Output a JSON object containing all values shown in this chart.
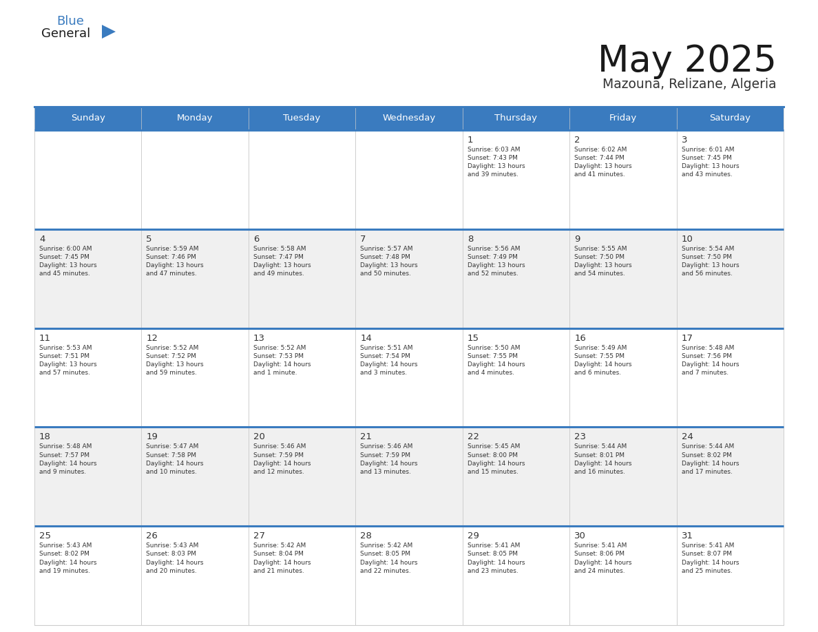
{
  "title": "May 2025",
  "subtitle": "Mazouna, Relizane, Algeria",
  "header_color": "#3a7bbf",
  "header_text_color": "#ffffff",
  "cell_bg_white": "#ffffff",
  "cell_bg_gray": "#f0f0f0",
  "border_color": "#cccccc",
  "day_number_color": "#333333",
  "info_text_color": "#333333",
  "days_of_week": [
    "Sunday",
    "Monday",
    "Tuesday",
    "Wednesday",
    "Thursday",
    "Friday",
    "Saturday"
  ],
  "logo_general_color": "#1a1a1a",
  "logo_blue_color": "#3a7bbf",
  "logo_triangle_color": "#3a7bbf",
  "title_color": "#1a1a1a",
  "subtitle_color": "#333333",
  "weeks": [
    [
      {
        "day": "",
        "info": ""
      },
      {
        "day": "",
        "info": ""
      },
      {
        "day": "",
        "info": ""
      },
      {
        "day": "",
        "info": ""
      },
      {
        "day": "1",
        "info": "Sunrise: 6:03 AM\nSunset: 7:43 PM\nDaylight: 13 hours\nand 39 minutes."
      },
      {
        "day": "2",
        "info": "Sunrise: 6:02 AM\nSunset: 7:44 PM\nDaylight: 13 hours\nand 41 minutes."
      },
      {
        "day": "3",
        "info": "Sunrise: 6:01 AM\nSunset: 7:45 PM\nDaylight: 13 hours\nand 43 minutes."
      }
    ],
    [
      {
        "day": "4",
        "info": "Sunrise: 6:00 AM\nSunset: 7:45 PM\nDaylight: 13 hours\nand 45 minutes."
      },
      {
        "day": "5",
        "info": "Sunrise: 5:59 AM\nSunset: 7:46 PM\nDaylight: 13 hours\nand 47 minutes."
      },
      {
        "day": "6",
        "info": "Sunrise: 5:58 AM\nSunset: 7:47 PM\nDaylight: 13 hours\nand 49 minutes."
      },
      {
        "day": "7",
        "info": "Sunrise: 5:57 AM\nSunset: 7:48 PM\nDaylight: 13 hours\nand 50 minutes."
      },
      {
        "day": "8",
        "info": "Sunrise: 5:56 AM\nSunset: 7:49 PM\nDaylight: 13 hours\nand 52 minutes."
      },
      {
        "day": "9",
        "info": "Sunrise: 5:55 AM\nSunset: 7:50 PM\nDaylight: 13 hours\nand 54 minutes."
      },
      {
        "day": "10",
        "info": "Sunrise: 5:54 AM\nSunset: 7:50 PM\nDaylight: 13 hours\nand 56 minutes."
      }
    ],
    [
      {
        "day": "11",
        "info": "Sunrise: 5:53 AM\nSunset: 7:51 PM\nDaylight: 13 hours\nand 57 minutes."
      },
      {
        "day": "12",
        "info": "Sunrise: 5:52 AM\nSunset: 7:52 PM\nDaylight: 13 hours\nand 59 minutes."
      },
      {
        "day": "13",
        "info": "Sunrise: 5:52 AM\nSunset: 7:53 PM\nDaylight: 14 hours\nand 1 minute."
      },
      {
        "day": "14",
        "info": "Sunrise: 5:51 AM\nSunset: 7:54 PM\nDaylight: 14 hours\nand 3 minutes."
      },
      {
        "day": "15",
        "info": "Sunrise: 5:50 AM\nSunset: 7:55 PM\nDaylight: 14 hours\nand 4 minutes."
      },
      {
        "day": "16",
        "info": "Sunrise: 5:49 AM\nSunset: 7:55 PM\nDaylight: 14 hours\nand 6 minutes."
      },
      {
        "day": "17",
        "info": "Sunrise: 5:48 AM\nSunset: 7:56 PM\nDaylight: 14 hours\nand 7 minutes."
      }
    ],
    [
      {
        "day": "18",
        "info": "Sunrise: 5:48 AM\nSunset: 7:57 PM\nDaylight: 14 hours\nand 9 minutes."
      },
      {
        "day": "19",
        "info": "Sunrise: 5:47 AM\nSunset: 7:58 PM\nDaylight: 14 hours\nand 10 minutes."
      },
      {
        "day": "20",
        "info": "Sunrise: 5:46 AM\nSunset: 7:59 PM\nDaylight: 14 hours\nand 12 minutes."
      },
      {
        "day": "21",
        "info": "Sunrise: 5:46 AM\nSunset: 7:59 PM\nDaylight: 14 hours\nand 13 minutes."
      },
      {
        "day": "22",
        "info": "Sunrise: 5:45 AM\nSunset: 8:00 PM\nDaylight: 14 hours\nand 15 minutes."
      },
      {
        "day": "23",
        "info": "Sunrise: 5:44 AM\nSunset: 8:01 PM\nDaylight: 14 hours\nand 16 minutes."
      },
      {
        "day": "24",
        "info": "Sunrise: 5:44 AM\nSunset: 8:02 PM\nDaylight: 14 hours\nand 17 minutes."
      }
    ],
    [
      {
        "day": "25",
        "info": "Sunrise: 5:43 AM\nSunset: 8:02 PM\nDaylight: 14 hours\nand 19 minutes."
      },
      {
        "day": "26",
        "info": "Sunrise: 5:43 AM\nSunset: 8:03 PM\nDaylight: 14 hours\nand 20 minutes."
      },
      {
        "day": "27",
        "info": "Sunrise: 5:42 AM\nSunset: 8:04 PM\nDaylight: 14 hours\nand 21 minutes."
      },
      {
        "day": "28",
        "info": "Sunrise: 5:42 AM\nSunset: 8:05 PM\nDaylight: 14 hours\nand 22 minutes."
      },
      {
        "day": "29",
        "info": "Sunrise: 5:41 AM\nSunset: 8:05 PM\nDaylight: 14 hours\nand 23 minutes."
      },
      {
        "day": "30",
        "info": "Sunrise: 5:41 AM\nSunset: 8:06 PM\nDaylight: 14 hours\nand 24 minutes."
      },
      {
        "day": "31",
        "info": "Sunrise: 5:41 AM\nSunset: 8:07 PM\nDaylight: 14 hours\nand 25 minutes."
      }
    ]
  ]
}
